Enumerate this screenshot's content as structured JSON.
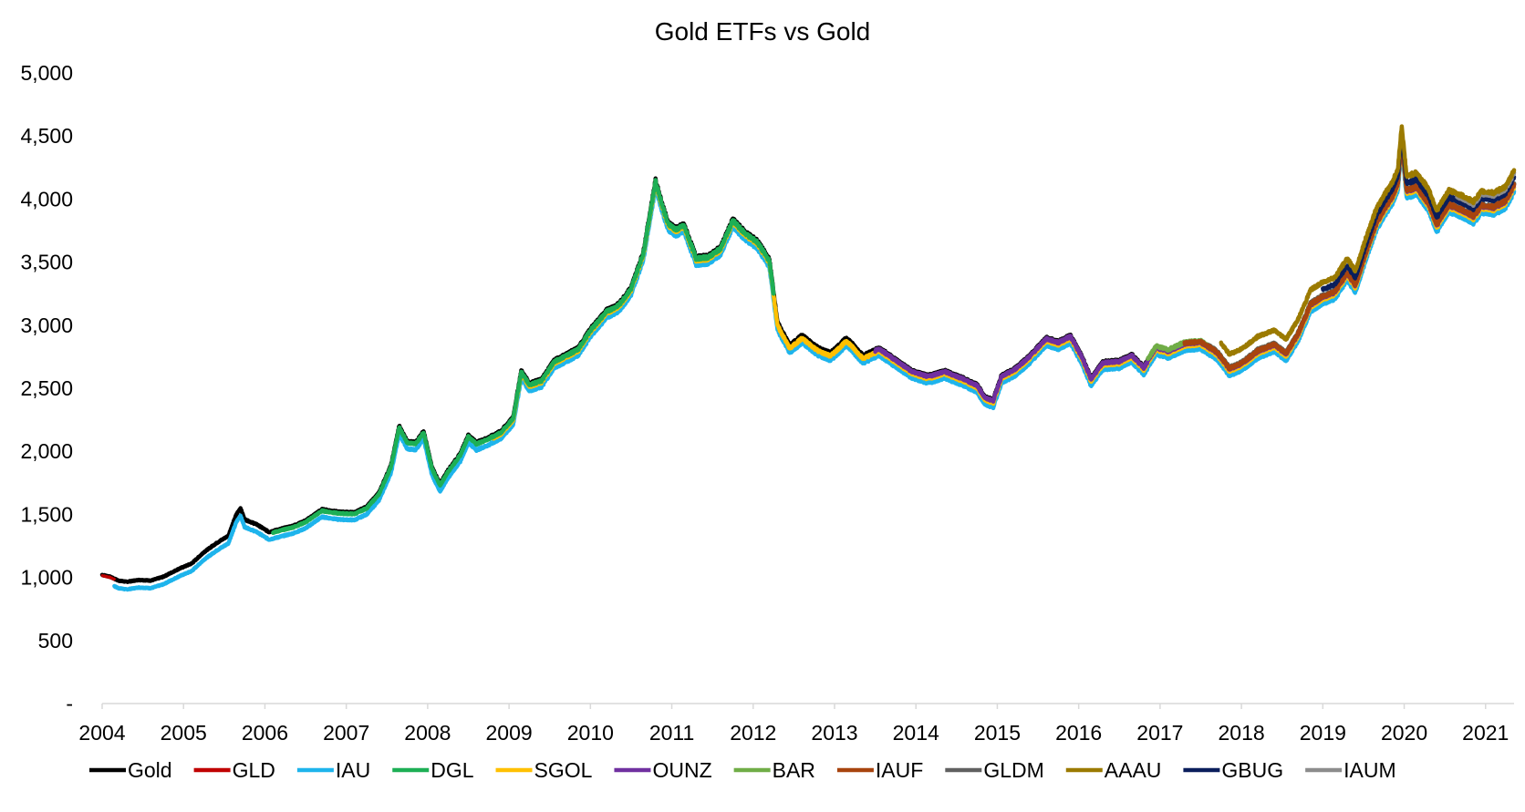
{
  "chart_data": {
    "type": "line",
    "title": "Gold ETFs vs Gold",
    "xlabel": "",
    "ylabel": "",
    "xlim": [
      2004.0,
      2021.35
    ],
    "ylim": [
      0,
      5000
    ],
    "y_ticks": [
      0,
      500,
      1000,
      1500,
      2000,
      2500,
      3000,
      3500,
      4000,
      4500,
      5000
    ],
    "y_tick_labels": [
      "-",
      "500",
      "1,000",
      "1,500",
      "2,000",
      "2,500",
      "3,000",
      "3,500",
      "4,000",
      "4,500",
      "5,000"
    ],
    "x_ticks": [
      2004,
      2005,
      2006,
      2007,
      2008,
      2009,
      2010,
      2011,
      2012,
      2013,
      2014,
      2015,
      2016,
      2017,
      2018,
      2019,
      2020,
      2021
    ],
    "x_tick_labels": [
      "2004",
      "2005",
      "2006",
      "2007",
      "2008",
      "2009",
      "2010",
      "2011",
      "2012",
      "2013",
      "2014",
      "2015",
      "2016",
      "2017",
      "2018",
      "2019",
      "2020",
      "2021"
    ],
    "grid": false,
    "legend_position": "bottom",
    "gold_path": [
      [
        2004.0,
        1000
      ],
      [
        2004.1,
        985
      ],
      [
        2004.2,
        955
      ],
      [
        2004.3,
        945
      ],
      [
        2004.45,
        960
      ],
      [
        2004.6,
        955
      ],
      [
        2004.75,
        985
      ],
      [
        2004.95,
        1050
      ],
      [
        2005.1,
        1090
      ],
      [
        2005.25,
        1180
      ],
      [
        2005.4,
        1250
      ],
      [
        2005.55,
        1310
      ],
      [
        2005.65,
        1480
      ],
      [
        2005.7,
        1530
      ],
      [
        2005.75,
        1440
      ],
      [
        2005.9,
        1400
      ],
      [
        2006.05,
        1340
      ],
      [
        2006.2,
        1365
      ],
      [
        2006.35,
        1390
      ],
      [
        2006.5,
        1430
      ],
      [
        2006.7,
        1520
      ],
      [
        2006.9,
        1500
      ],
      [
        2007.1,
        1495
      ],
      [
        2007.25,
        1540
      ],
      [
        2007.4,
        1650
      ],
      [
        2007.55,
        1870
      ],
      [
        2007.65,
        2180
      ],
      [
        2007.75,
        2060
      ],
      [
        2007.85,
        2050
      ],
      [
        2007.95,
        2140
      ],
      [
        2008.05,
        1860
      ],
      [
        2008.15,
        1720
      ],
      [
        2008.25,
        1830
      ],
      [
        2008.4,
        1960
      ],
      [
        2008.5,
        2110
      ],
      [
        2008.6,
        2050
      ],
      [
        2008.75,
        2090
      ],
      [
        2008.9,
        2140
      ],
      [
        2009.05,
        2250
      ],
      [
        2009.15,
        2620
      ],
      [
        2009.25,
        2520
      ],
      [
        2009.4,
        2550
      ],
      [
        2009.55,
        2700
      ],
      [
        2009.7,
        2750
      ],
      [
        2009.85,
        2800
      ],
      [
        2010.0,
        2950
      ],
      [
        2010.2,
        3100
      ],
      [
        2010.35,
        3150
      ],
      [
        2010.5,
        3280
      ],
      [
        2010.65,
        3560
      ],
      [
        2010.8,
        4130
      ],
      [
        2010.88,
        3950
      ],
      [
        2010.95,
        3800
      ],
      [
        2011.05,
        3750
      ],
      [
        2011.15,
        3780
      ],
      [
        2011.3,
        3520
      ],
      [
        2011.45,
        3530
      ],
      [
        2011.6,
        3600
      ],
      [
        2011.75,
        3820
      ],
      [
        2011.9,
        3720
      ],
      [
        2012.05,
        3650
      ],
      [
        2012.2,
        3500
      ],
      [
        2012.3,
        3000
      ],
      [
        2012.45,
        2820
      ],
      [
        2012.6,
        2900
      ],
      [
        2012.8,
        2800
      ],
      [
        2012.95,
        2760
      ],
      [
        2013.15,
        2880
      ],
      [
        2013.35,
        2740
      ],
      [
        2013.55,
        2800
      ],
      [
        2013.75,
        2710
      ],
      [
        2013.95,
        2620
      ],
      [
        2014.15,
        2580
      ],
      [
        2014.35,
        2620
      ],
      [
        2014.55,
        2570
      ],
      [
        2014.75,
        2510
      ],
      [
        2014.85,
        2410
      ],
      [
        2014.95,
        2390
      ],
      [
        2015.05,
        2580
      ],
      [
        2015.2,
        2630
      ],
      [
        2015.4,
        2740
      ],
      [
        2015.6,
        2880
      ],
      [
        2015.75,
        2850
      ],
      [
        2015.9,
        2900
      ],
      [
        2016.05,
        2720
      ],
      [
        2016.15,
        2560
      ],
      [
        2016.3,
        2690
      ],
      [
        2016.5,
        2700
      ],
      [
        2016.65,
        2750
      ],
      [
        2016.8,
        2650
      ],
      [
        2016.95,
        2810
      ],
      [
        2017.1,
        2780
      ],
      [
        2017.3,
        2840
      ],
      [
        2017.5,
        2850
      ],
      [
        2017.7,
        2770
      ],
      [
        2017.85,
        2640
      ],
      [
        2018.0,
        2680
      ],
      [
        2018.2,
        2780
      ],
      [
        2018.4,
        2830
      ],
      [
        2018.55,
        2760
      ],
      [
        2018.7,
        2920
      ],
      [
        2018.85,
        3150
      ],
      [
        2019.0,
        3210
      ],
      [
        2019.15,
        3250
      ],
      [
        2019.3,
        3400
      ],
      [
        2019.4,
        3300
      ],
      [
        2019.55,
        3600
      ],
      [
        2019.65,
        3780
      ],
      [
        2019.75,
        3900
      ],
      [
        2019.85,
        4000
      ],
      [
        2019.92,
        4100
      ],
      [
        2019.97,
        4450
      ],
      [
        2020.03,
        4050
      ],
      [
        2020.15,
        4080
      ],
      [
        2020.3,
        3950
      ],
      [
        2020.4,
        3780
      ],
      [
        2020.55,
        3940
      ],
      [
        2020.7,
        3900
      ],
      [
        2020.85,
        3850
      ],
      [
        2020.95,
        3930
      ],
      [
        2021.1,
        3920
      ],
      [
        2021.25,
        3970
      ],
      [
        2021.35,
        4100
      ]
    ],
    "series": [
      {
        "name": "Gold",
        "color": "#000000",
        "start": 2004.0,
        "end": 2021.35,
        "offset": 20
      },
      {
        "name": "GLD",
        "color": "#C00000",
        "start": 2004.0,
        "end": 2004.15,
        "offset": 15
      },
      {
        "name": "IAU",
        "color": "#1EB4EC",
        "start": 2004.15,
        "end": 2021.35,
        "offset": -40
      },
      {
        "name": "DGL",
        "color": "#1DAF55",
        "start": 2006.1,
        "end": 2012.25,
        "offset": 8
      },
      {
        "name": "SGOL",
        "color": "#FFC000",
        "start": 2008.8,
        "end": 2021.35,
        "offset": -5
      },
      {
        "name": "OUNZ",
        "color": "#7030A0",
        "start": 2013.5,
        "end": 2021.35,
        "offset": 12
      },
      {
        "name": "BAR",
        "color": "#70AD47",
        "start": 2016.85,
        "end": 2021.35,
        "offset": 25
      },
      {
        "name": "IAUF",
        "color": "#A8440E",
        "start": 2017.3,
        "end": 2021.35,
        "offset": 18
      },
      {
        "name": "GLDM",
        "color": "#606060",
        "start": 2017.6,
        "end": 2021.35,
        "offset": 25
      },
      {
        "name": "AAAU",
        "color": "#9B7A00",
        "start": 2017.75,
        "end": 2021.35,
        "offset": 130
      },
      {
        "name": "GBUG",
        "color": "#0A1E5C",
        "start": 2019.0,
        "end": 2021.35,
        "offset": 75
      },
      {
        "name": "IAUM",
        "color": "#8C8C8C",
        "start": 2020.65,
        "end": 2021.35,
        "offset": 110
      }
    ]
  }
}
